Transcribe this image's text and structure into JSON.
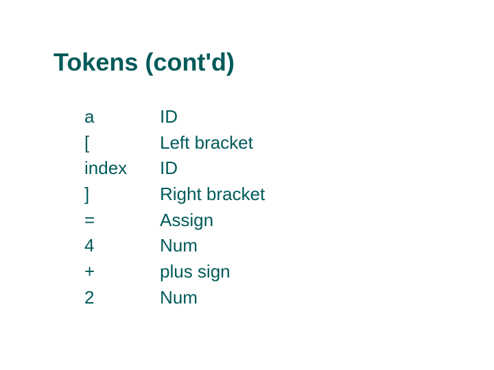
{
  "title": "Tokens (cont'd)",
  "colors": {
    "text": "#005a5a",
    "background": "#ffffff"
  },
  "typography": {
    "title_fontsize": 36,
    "title_weight": "bold",
    "body_fontsize": 26,
    "font_family": "Arial"
  },
  "tokens": [
    {
      "lexeme": "a",
      "type": " ID"
    },
    {
      "lexeme": "[",
      "type": " Left bracket"
    },
    {
      "lexeme": "index",
      "type": " ID"
    },
    {
      "lexeme": "]",
      "type": "Right bracket"
    },
    {
      "lexeme": "=",
      "type": "Assign"
    },
    {
      "lexeme": "4",
      "type": "Num"
    },
    {
      "lexeme": "+",
      "type": "plus sign"
    },
    {
      "lexeme": "2",
      "type": "Num"
    }
  ]
}
